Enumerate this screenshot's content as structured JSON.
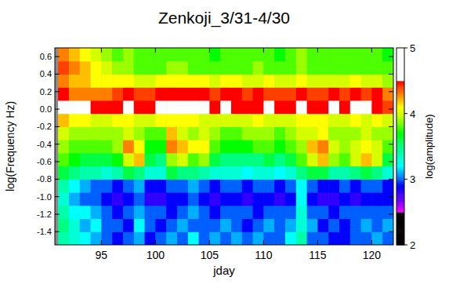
{
  "chart_data": {
    "type": "heatmap",
    "title": "Zenkoji_3/31-4/30",
    "x_label": "jday",
    "y_label": "log(Frequency Hz)",
    "colorbar_label": "log(amplitude)",
    "xlim": [
      90.7,
      122.0
    ],
    "ylim": [
      -1.55,
      0.7
    ],
    "xticks": [
      95,
      100,
      105,
      110,
      115,
      120
    ],
    "yticks": [
      -1.4,
      -1.2,
      {
        "value": -1.0,
        "label": "-1.0"
      },
      -0.8,
      -0.6,
      -0.4,
      -0.2,
      {
        "value": 0,
        "label": "0.0"
      },
      0.2,
      0.4,
      0.6
    ],
    "x_bins": [
      91,
      92,
      93,
      94,
      95,
      96,
      97,
      98,
      99,
      100,
      101,
      102,
      103,
      104,
      105,
      106,
      107,
      108,
      109,
      110,
      111,
      112,
      113,
      114,
      115,
      116,
      117,
      118,
      119,
      120,
      121,
      122
    ],
    "y_bins": [
      -1.55,
      -1.4,
      -1.25,
      -1.1,
      -0.95,
      -0.8,
      -0.65,
      -0.5,
      -0.35,
      -0.2,
      -0.05,
      0.1,
      0.25,
      0.4,
      0.55,
      0.7
    ],
    "values": [
      [
        3.4,
        3.3,
        3.2,
        3.1,
        3.0,
        2.9,
        3.0,
        3.1,
        2.9,
        3.0,
        3.1,
        3.0,
        3.2,
        3.0,
        3.1,
        3.0,
        3.1,
        3.0,
        3.1,
        3.0,
        3.0,
        3.2,
        3.4,
        3.0,
        3.0,
        2.9,
        2.9,
        3.0,
        3.0,
        3.1,
        3.0
      ],
      [
        3.5,
        3.3,
        3.1,
        3.2,
        3.0,
        3.0,
        2.9,
        3.2,
        3.0,
        2.9,
        3.0,
        3.1,
        3.0,
        3.0,
        3.0,
        3.1,
        3.0,
        2.9,
        3.0,
        3.1,
        3.0,
        3.1,
        3.3,
        3.1,
        2.9,
        3.0,
        2.9,
        3.0,
        3.1,
        3.0,
        3.1
      ],
      [
        3.4,
        3.2,
        3.2,
        3.1,
        3.0,
        2.9,
        3.0,
        3.1,
        3.0,
        3.0,
        2.9,
        3.0,
        3.1,
        3.0,
        2.9,
        3.0,
        3.0,
        3.0,
        2.9,
        3.0,
        3.0,
        3.0,
        3.3,
        3.0,
        3.0,
        2.9,
        3.0,
        3.0,
        3.0,
        3.0,
        3.0
      ],
      [
        3.3,
        3.1,
        3.0,
        3.0,
        2.9,
        2.8,
        2.9,
        3.0,
        2.8,
        2.8,
        2.9,
        2.9,
        3.0,
        2.9,
        2.8,
        2.9,
        2.9,
        2.8,
        2.9,
        2.9,
        2.8,
        2.9,
        3.2,
        2.9,
        2.8,
        2.8,
        2.9,
        2.8,
        2.9,
        2.9,
        2.9
      ],
      [
        3.4,
        3.2,
        3.1,
        3.0,
        3.0,
        2.9,
        3.0,
        3.1,
        2.9,
        2.9,
        3.0,
        3.0,
        3.1,
        3.0,
        2.9,
        3.0,
        3.0,
        2.9,
        3.0,
        3.0,
        2.9,
        3.0,
        3.2,
        3.0,
        2.9,
        2.9,
        3.0,
        2.9,
        3.0,
        3.0,
        2.9
      ],
      [
        3.6,
        3.5,
        3.4,
        3.4,
        3.3,
        3.4,
        3.6,
        3.5,
        3.3,
        3.3,
        3.6,
        3.5,
        3.5,
        3.4,
        3.3,
        3.3,
        3.3,
        3.2,
        3.3,
        3.3,
        3.2,
        3.3,
        3.5,
        3.6,
        3.6,
        3.4,
        3.4,
        3.5,
        3.6,
        3.5,
        3.3
      ],
      [
        3.8,
        3.7,
        3.6,
        3.6,
        3.6,
        3.7,
        4.0,
        4.2,
        3.6,
        3.5,
        3.9,
        4.0,
        3.8,
        3.9,
        3.6,
        3.5,
        3.5,
        3.5,
        3.5,
        3.6,
        3.5,
        3.6,
        3.8,
        4.0,
        4.2,
        3.9,
        3.8,
        4.0,
        4.2,
        4.0,
        3.6
      ],
      [
        3.9,
        3.8,
        3.8,
        3.8,
        3.8,
        3.9,
        4.3,
        4.1,
        3.7,
        3.7,
        4.3,
        4.2,
        4.1,
        4.1,
        3.8,
        3.7,
        3.7,
        3.7,
        3.8,
        3.8,
        3.7,
        3.8,
        3.9,
        4.2,
        4.3,
        4.0,
        3.9,
        4.0,
        4.1,
        4.0,
        3.8
      ],
      [
        4.0,
        3.9,
        3.9,
        3.9,
        3.9,
        3.9,
        4.0,
        3.9,
        3.8,
        3.8,
        4.2,
        4.0,
        3.9,
        4.0,
        3.9,
        3.8,
        3.8,
        3.9,
        3.9,
        3.9,
        3.8,
        3.9,
        4.0,
        4.0,
        4.1,
        3.9,
        3.9,
        3.9,
        4.0,
        3.9,
        3.9
      ],
      [
        4.2,
        4.1,
        4.1,
        4.0,
        4.0,
        4.1,
        4.1,
        4.0,
        4.0,
        4.1,
        4.1,
        4.1,
        4.1,
        4.0,
        4.0,
        4.0,
        4.0,
        4.0,
        4.1,
        4.0,
        4.0,
        4.0,
        4.1,
        4.1,
        4.1,
        4.0,
        4.0,
        4.1,
        4.0,
        4.1,
        4.0
      ],
      [
        4.7,
        4.6,
        4.6,
        4.5,
        4.5,
        4.5,
        4.6,
        4.5,
        4.5,
        4.7,
        4.8,
        4.8,
        4.7,
        4.6,
        4.5,
        4.6,
        4.5,
        4.5,
        4.5,
        4.6,
        4.5,
        4.5,
        4.6,
        4.5,
        4.5,
        4.6,
        4.5,
        4.6,
        4.6,
        4.5,
        4.4
      ],
      [
        4.5,
        4.3,
        4.3,
        4.3,
        4.3,
        4.4,
        4.5,
        4.4,
        4.4,
        4.5,
        4.5,
        4.5,
        4.5,
        4.5,
        4.4,
        4.5,
        4.5,
        4.4,
        4.5,
        4.4,
        4.4,
        4.4,
        4.5,
        4.4,
        4.4,
        4.5,
        4.4,
        4.5,
        4.4,
        4.5,
        4.3
      ],
      [
        4.3,
        4.2,
        4.2,
        4.1,
        4.1,
        4.1,
        4.1,
        4.0,
        4.0,
        4.1,
        4.1,
        4.1,
        4.1,
        4.1,
        4.0,
        4.1,
        4.1,
        4.0,
        4.0,
        4.1,
        4.0,
        4.0,
        4.1,
        4.0,
        4.0,
        4.0,
        4.0,
        4.1,
        4.0,
        4.0,
        3.9
      ],
      [
        4.4,
        4.3,
        4.2,
        4.1,
        4.0,
        3.9,
        3.9,
        3.8,
        3.8,
        3.8,
        3.9,
        3.9,
        3.8,
        3.8,
        3.8,
        3.8,
        3.8,
        3.8,
        3.9,
        3.8,
        3.8,
        3.8,
        3.9,
        3.8,
        3.8,
        3.8,
        3.8,
        3.8,
        3.8,
        3.8,
        3.8
      ],
      [
        4.3,
        4.2,
        4.1,
        4.0,
        3.9,
        3.8,
        3.9,
        3.8,
        3.8,
        3.8,
        3.8,
        3.8,
        3.8,
        3.8,
        3.7,
        3.8,
        3.8,
        3.8,
        3.8,
        3.8,
        3.7,
        3.8,
        3.9,
        3.8,
        3.8,
        3.8,
        3.8,
        3.8,
        3.8,
        3.8,
        3.7
      ]
    ],
    "colorbar": {
      "range": [
        2,
        5
      ],
      "ticks": [
        2,
        3,
        4,
        5
      ]
    }
  }
}
